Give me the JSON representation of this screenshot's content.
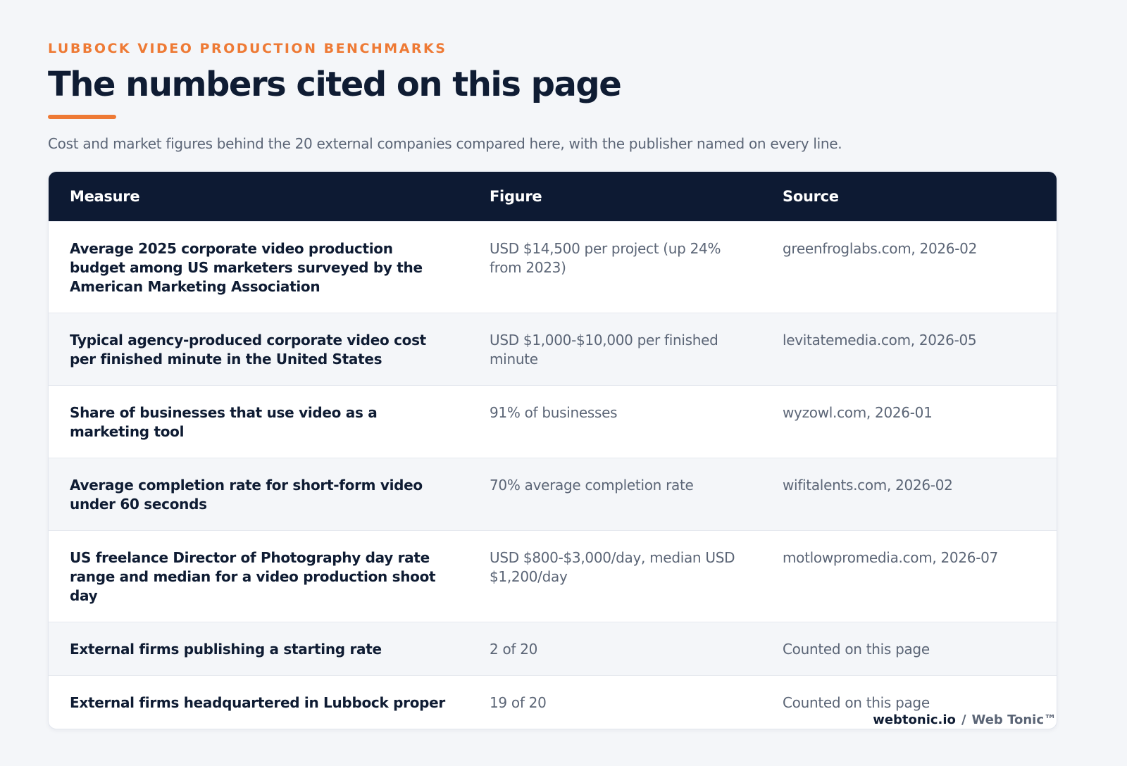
{
  "header": {
    "eyebrow": "LUBBOCK VIDEO PRODUCTION BENCHMARKS",
    "title": "The numbers cited on this page",
    "subtitle": "Cost and market figures behind the 20 external companies compared here, with the publisher named on every line."
  },
  "table": {
    "columns": [
      "Measure",
      "Figure",
      "Source"
    ],
    "rows": [
      [
        "Average 2025 corporate video production budget among US marketers surveyed by the American Marketing Association",
        "USD $14,500 per project (up 24% from 2023)",
        "greenfroglabs.com, 2026-02"
      ],
      [
        "Typical agency-produced corporate video cost per finished minute in the United States",
        "USD $1,000-$10,000 per finished minute",
        "levitatemedia.com, 2026-05"
      ],
      [
        "Share of businesses that use video as a marketing tool",
        "91% of businesses",
        "wyzowl.com, 2026-01"
      ],
      [
        "Average completion rate for short-form video under 60 seconds",
        "70% average completion rate",
        "wifitalents.com, 2026-02"
      ],
      [
        "US freelance Director of Photography day rate range and median for a video production shoot day",
        "USD $800-$3,000/day, median USD $1,200/day",
        "motlowpromedia.com, 2026-07"
      ],
      [
        "External firms publishing a starting rate",
        "2 of 20",
        "Counted on this page"
      ],
      [
        "External firms headquartered in Lubbock proper",
        "19 of 20",
        "Counted on this page"
      ]
    ]
  },
  "footer": {
    "site": "webtonic.io",
    "separator": "/",
    "brand": "Web Tonic™"
  }
}
